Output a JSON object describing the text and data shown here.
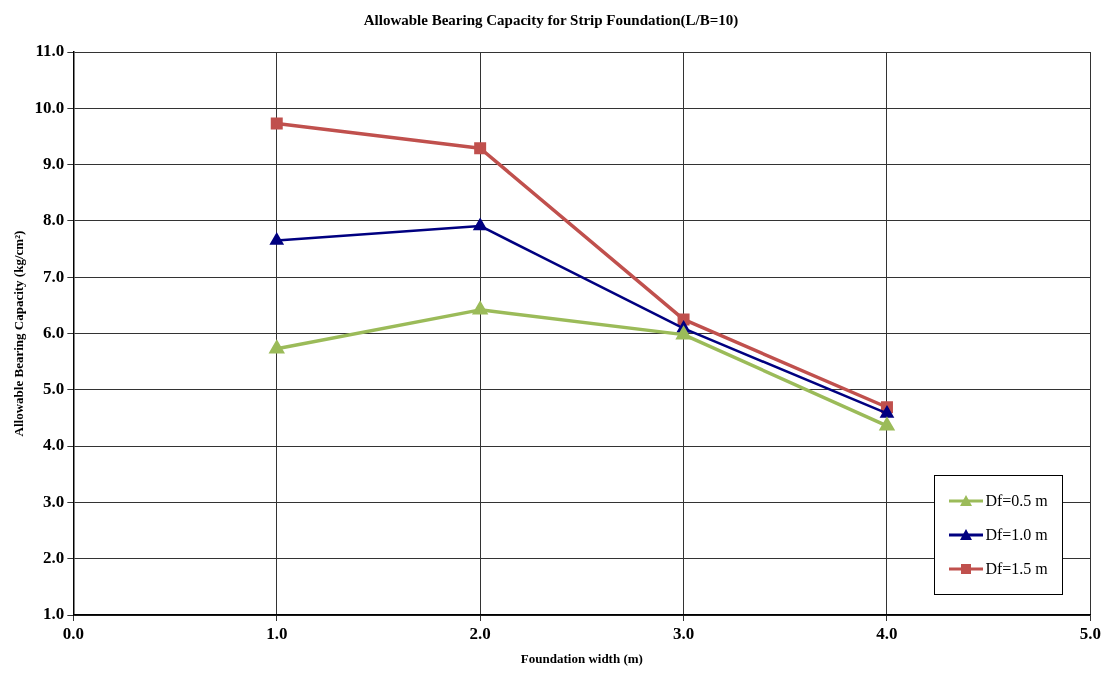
{
  "chart_data": {
    "type": "line",
    "title": "Allowable Bearing Capacity for Strip Foundation(L/B=10)",
    "xlabel": "Foundation width (m)",
    "ylabel": "Allowable Bearing Capacity (kg/cm²)",
    "x": [
      1,
      2,
      3,
      4
    ],
    "series": [
      {
        "name": "Df=0.5 m",
        "color": "#9bbb59",
        "values": [
          5.73,
          6.42,
          5.98,
          4.36
        ],
        "marker": "triangle"
      },
      {
        "name": "Df=1.0 m",
        "color": "#000080",
        "values": [
          7.65,
          7.91,
          6.09,
          4.58
        ],
        "marker": "triangle"
      },
      {
        "name": "Df=1.5 m",
        "color": "#c0504d",
        "values": [
          9.73,
          9.29,
          6.25,
          4.69
        ],
        "marker": "square"
      }
    ],
    "xlim": [
      0,
      5
    ],
    "xticks": [
      {
        "value": 0,
        "label": "0.0"
      },
      {
        "value": 1,
        "label": "1.0"
      },
      {
        "value": 2,
        "label": "2.0"
      },
      {
        "value": 3,
        "label": "3.0"
      },
      {
        "value": 4,
        "label": "4.0"
      },
      {
        "value": 5,
        "label": "5.0"
      }
    ],
    "ylim": [
      1,
      11
    ],
    "yticks": [
      {
        "value": 1,
        "label": "1.0"
      },
      {
        "value": 2,
        "label": "2.0"
      },
      {
        "value": 3,
        "label": "3.0"
      },
      {
        "value": 4,
        "label": "4.0"
      },
      {
        "value": 5,
        "label": "5.0"
      },
      {
        "value": 6,
        "label": "6.0"
      },
      {
        "value": 7,
        "label": "7.0"
      },
      {
        "value": 8,
        "label": "8.0"
      },
      {
        "value": 9,
        "label": "9.0"
      },
      {
        "value": 10,
        "label": "10.0"
      },
      {
        "value": 11,
        "label": "11.0"
      }
    ],
    "grid": true,
    "line_style": "solid",
    "legend": "bottom right"
  }
}
